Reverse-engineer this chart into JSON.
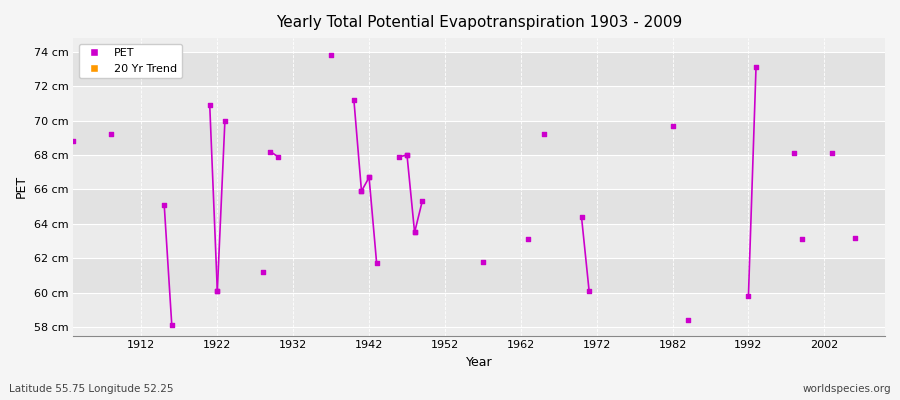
{
  "title": "Yearly Total Potential Evapotranspiration 1903 - 2009",
  "xlabel": "Year",
  "ylabel": "PET",
  "subtitle_left": "Latitude 55.75 Longitude 52.25",
  "subtitle_right": "worldspecies.org",
  "ylim": [
    57.5,
    74.8
  ],
  "yticks": [
    58,
    60,
    62,
    64,
    66,
    68,
    70,
    72,
    74
  ],
  "ytick_labels": [
    "58 cm",
    "60 cm",
    "62 cm",
    "64 cm",
    "66 cm",
    "68 cm",
    "70 cm",
    "72 cm",
    "74 cm"
  ],
  "xticks": [
    1912,
    1922,
    1932,
    1942,
    1952,
    1962,
    1972,
    1982,
    1992,
    2002
  ],
  "xlim": [
    1903,
    2010
  ],
  "background_color": "#f5f5f5",
  "plot_bg_color": "#eeeeee",
  "band_color1": "#ebebeb",
  "band_color2": "#e2e2e2",
  "grid_color": "#ffffff",
  "line_color": "#cc00cc",
  "marker_color": "#cc00cc",
  "legend_pet_color": "#cc00cc",
  "legend_trend_color": "#ff9900",
  "isolated_points": [
    [
      1903,
      68.8
    ],
    [
      1908,
      69.2
    ],
    [
      1928,
      61.2
    ],
    [
      1937,
      73.8
    ],
    [
      1957,
      61.8
    ],
    [
      1963,
      63.1
    ],
    [
      1965,
      69.2
    ],
    [
      1982,
      69.7
    ],
    [
      1984,
      58.4
    ],
    [
      1998,
      68.1
    ],
    [
      1999,
      63.1
    ],
    [
      2003,
      68.1
    ],
    [
      2006,
      63.2
    ]
  ],
  "line_segments": [
    [
      [
        1915,
        65.1
      ],
      [
        1916,
        58.1
      ]
    ],
    [
      [
        1921,
        70.9
      ],
      [
        1922,
        60.1
      ]
    ],
    [
      [
        1922,
        60.1
      ],
      [
        1923,
        70.0
      ]
    ],
    [
      [
        1929,
        68.2
      ],
      [
        1930,
        67.9
      ]
    ],
    [
      [
        1940,
        71.2
      ],
      [
        1941,
        65.9
      ]
    ],
    [
      [
        1941,
        65.9
      ],
      [
        1942,
        66.7
      ]
    ],
    [
      [
        1942,
        66.7
      ],
      [
        1943,
        61.7
      ]
    ],
    [
      [
        1946,
        67.9
      ],
      [
        1947,
        68.0
      ]
    ],
    [
      [
        1947,
        68.0
      ],
      [
        1948,
        63.5
      ]
    ],
    [
      [
        1948,
        63.5
      ],
      [
        1949,
        65.3
      ]
    ],
    [
      [
        1970,
        64.4
      ],
      [
        1971,
        60.1
      ]
    ],
    [
      [
        1992,
        59.8
      ],
      [
        1993,
        73.1
      ]
    ]
  ]
}
